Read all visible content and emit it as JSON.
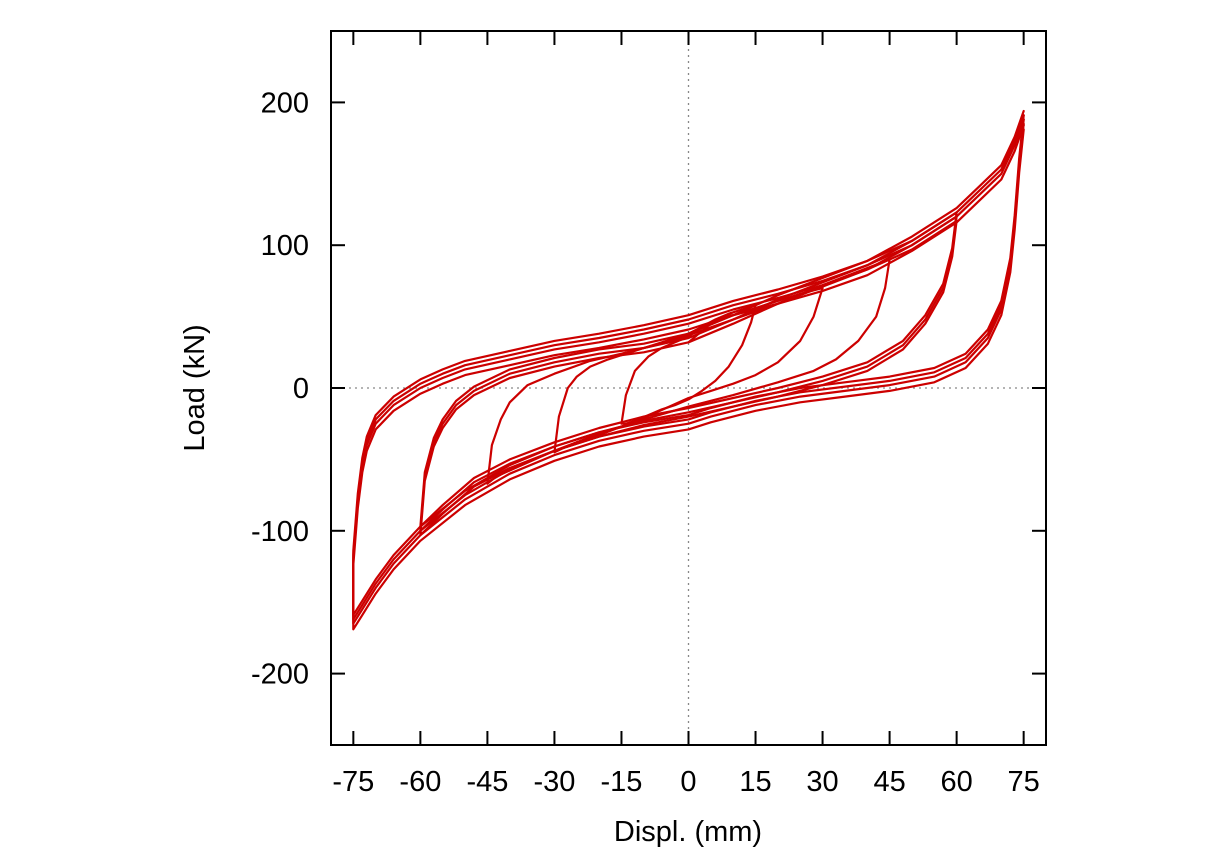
{
  "chart_data": {
    "type": "line",
    "title": "",
    "xlabel": "Displ. (mm)",
    "ylabel": "Load (kN)",
    "xlim": [
      -80,
      80
    ],
    "ylim": [
      -250,
      250
    ],
    "xticks": [
      -75,
      -60,
      -45,
      -30,
      -15,
      0,
      15,
      30,
      45,
      60,
      75
    ],
    "yticks": [
      -200,
      -100,
      0,
      100,
      200
    ],
    "xtick_labels": [
      "-75",
      "-60",
      "-45",
      "-30",
      "-15",
      "0",
      "15",
      "30",
      "45",
      "60",
      "75"
    ],
    "ytick_labels": [
      "-200",
      "-100",
      "0",
      "100",
      "200"
    ],
    "zero_lines": true,
    "grid": false,
    "line_color": "#cc0000",
    "series": [
      {
        "amplitude": 15,
        "x": [
          0,
          5,
          10,
          15,
          14,
          12,
          9,
          6,
          3,
          0,
          -3,
          -6,
          -9,
          -12,
          -14,
          -15,
          -14,
          -12,
          -9,
          -6,
          -3,
          0,
          3,
          6,
          9,
          12,
          15
        ],
        "y": [
          32,
          45,
          53,
          58,
          46,
          30,
          15,
          5,
          -2,
          -8,
          -12,
          -15,
          -19,
          -23,
          -25,
          -25,
          -5,
          12,
          22,
          28,
          32,
          36,
          43,
          48,
          52,
          55,
          58
        ]
      },
      {
        "amplitude": 30,
        "x": [
          30,
          28,
          25,
          20,
          15,
          10,
          5,
          0,
          -5,
          -10,
          -15,
          -20,
          -25,
          -28,
          -30,
          -29,
          -27,
          -25,
          -22,
          -18,
          -14,
          -10,
          -5,
          0,
          5,
          10,
          15,
          20,
          25,
          30
        ],
        "y": [
          70,
          50,
          33,
          18,
          9,
          3,
          -2,
          -7,
          -14,
          -21,
          -27,
          -33,
          -38,
          -42,
          -45,
          -20,
          0,
          8,
          15,
          20,
          24,
          28,
          33,
          38,
          46,
          51,
          56,
          61,
          66,
          70
        ]
      },
      {
        "amplitude": 45,
        "x": [
          45,
          44,
          42,
          38,
          33,
          28,
          20,
          10,
          0,
          -10,
          -20,
          -30,
          -38,
          -43,
          -45,
          -44,
          -42,
          -40,
          -36,
          -30,
          -22,
          -15,
          -5,
          0,
          10,
          20,
          30,
          40,
          45
        ],
        "y": [
          90,
          70,
          50,
          33,
          20,
          12,
          4,
          -5,
          -13,
          -22,
          -32,
          -44,
          -55,
          -62,
          -67,
          -40,
          -22,
          -10,
          2,
          10,
          19,
          24,
          32,
          37,
          48,
          59,
          72,
          84,
          90
        ]
      },
      {
        "amplitude": 60,
        "x": [
          60,
          59,
          57,
          53,
          48,
          40,
          30,
          20,
          10,
          0,
          -10,
          -20,
          -30,
          -40,
          -48,
          -55,
          -60,
          -59,
          -57,
          -55,
          -52,
          -48,
          -40,
          -30,
          -20,
          -10,
          0,
          10,
          20,
          30,
          40,
          50,
          60
        ],
        "y": [
          120,
          95,
          70,
          48,
          30,
          15,
          5,
          -3,
          -10,
          -17,
          -23,
          -31,
          -41,
          -53,
          -66,
          -85,
          -100,
          -62,
          -38,
          -25,
          -12,
          -2,
          10,
          18,
          24,
          28,
          35,
          48,
          62,
          74,
          86,
          100,
          120
        ],
        "repeat_y_offsets": [
          -3,
          3
        ]
      },
      {
        "amplitude": 75,
        "x": [
          75,
          74,
          73,
          72,
          70,
          67,
          62,
          55,
          45,
          35,
          25,
          15,
          5,
          0,
          -10,
          -20,
          -30,
          -40,
          -50,
          -60,
          -66,
          -70,
          -73,
          -75,
          -75,
          -74,
          -73,
          -72,
          -70,
          -66,
          -60,
          -55,
          -50,
          -40,
          -30,
          -20,
          -10,
          0,
          10,
          20,
          30,
          40,
          50,
          60,
          65,
          70,
          73,
          75
        ],
        "y": [
          185,
          155,
          115,
          85,
          55,
          35,
          18,
          8,
          2,
          -2,
          -6,
          -12,
          -20,
          -25,
          -30,
          -37,
          -47,
          -60,
          -78,
          -103,
          -123,
          -140,
          -155,
          -165,
          -120,
          -80,
          -55,
          -40,
          -25,
          -12,
          0,
          7,
          13,
          20,
          27,
          32,
          38,
          45,
          55,
          63,
          72,
          83,
          100,
          120,
          135,
          150,
          170,
          188
        ],
        "repeat_y_offsets": [
          -4,
          3,
          6
        ]
      }
    ]
  }
}
